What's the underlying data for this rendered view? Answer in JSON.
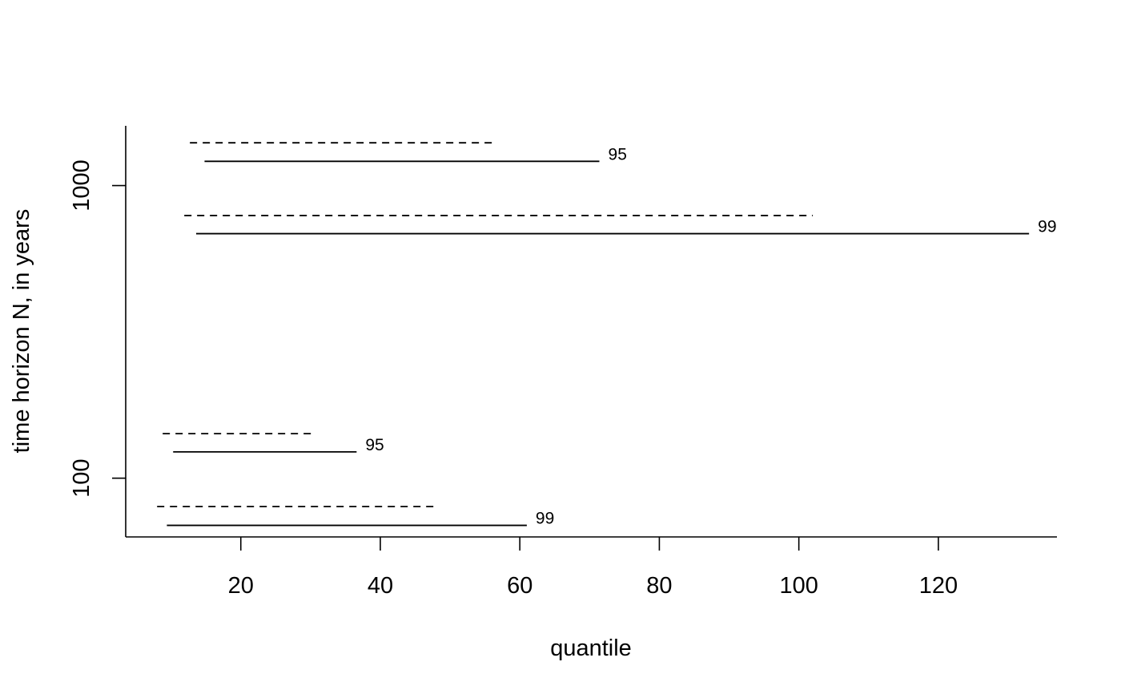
{
  "chart_data": {
    "type": "line",
    "title": "",
    "xlabel": "quantile",
    "ylabel": "time horizon N, in years",
    "xlim": [
      3.5,
      137
    ],
    "ylim": [
      63,
      1600
    ],
    "y_scale": "log",
    "x_ticks": [
      20,
      40,
      60,
      80,
      100,
      120
    ],
    "y_ticks": [
      100,
      1000
    ],
    "x_tick_labels": [
      "20",
      "40",
      "60",
      "80",
      "100",
      "120"
    ],
    "y_tick_labels": [
      "100",
      "1000"
    ],
    "grid": false,
    "segments": [
      {
        "style": "dashed",
        "x": [
          12.7,
          56.0
        ],
        "y": 1400,
        "label": ""
      },
      {
        "style": "solid",
        "x": [
          14.8,
          71.4
        ],
        "y": 1210,
        "label": "95"
      },
      {
        "style": "dashed",
        "x": [
          11.9,
          102.0
        ],
        "y": 790,
        "label": ""
      },
      {
        "style": "solid",
        "x": [
          13.6,
          133.0
        ],
        "y": 685,
        "label": "99"
      },
      {
        "style": "dashed",
        "x": [
          8.8,
          30.6
        ],
        "y": 142,
        "label": ""
      },
      {
        "style": "solid",
        "x": [
          10.3,
          36.6
        ],
        "y": 123,
        "label": "95"
      },
      {
        "style": "dashed",
        "x": [
          8.0,
          48.4
        ],
        "y": 80,
        "label": ""
      },
      {
        "style": "solid",
        "x": [
          9.4,
          61.0
        ],
        "y": 69,
        "label": "99"
      }
    ]
  }
}
